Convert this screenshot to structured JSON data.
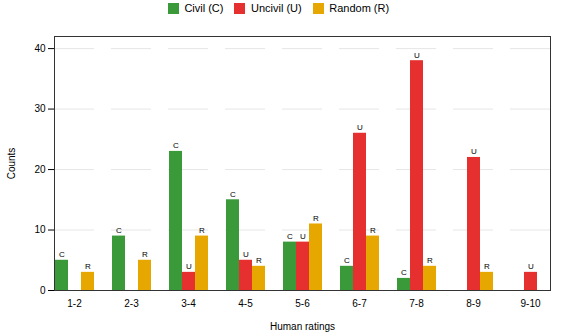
{
  "chart_data": {
    "type": "bar",
    "categories": [
      "1-2",
      "2-3",
      "3-4",
      "4-5",
      "5-6",
      "6-7",
      "7-8",
      "8-9",
      "9-10"
    ],
    "series": [
      {
        "name": "Civil (C)",
        "color": "#3a9a3a",
        "values": [
          5,
          9,
          23,
          15,
          8,
          4,
          2,
          0,
          0
        ],
        "labels": [
          "C",
          "C",
          "C",
          "C",
          "C",
          "C",
          "C",
          null,
          null
        ]
      },
      {
        "name": "Uncivil (U)",
        "color": "#e63030",
        "values": [
          0,
          0,
          3,
          5,
          8,
          26,
          38,
          22,
          3
        ],
        "labels": [
          null,
          null,
          "U",
          "U",
          "U",
          "U",
          "U",
          "U",
          "U"
        ]
      },
      {
        "name": "Random (R)",
        "color": "#e6a800",
        "values": [
          3,
          5,
          9,
          4,
          11,
          9,
          4,
          3,
          0
        ],
        "labels": [
          "R",
          "R",
          "R",
          "R",
          "R",
          "R",
          "R",
          "R",
          null
        ]
      }
    ],
    "xlabel": "Human ratings",
    "ylabel": "Counts",
    "ylim": [
      0,
      42
    ],
    "yticks": [
      0,
      10,
      20,
      30,
      40
    ],
    "grid": true,
    "legend": "top"
  }
}
